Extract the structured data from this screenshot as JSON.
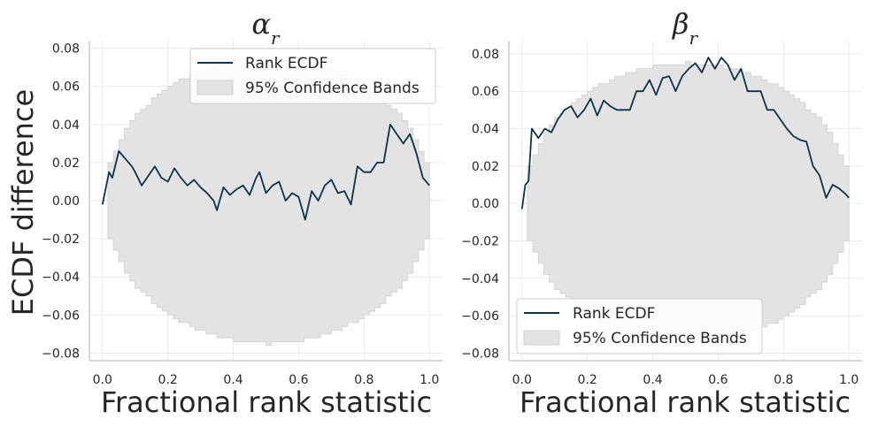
{
  "chart_data": [
    {
      "type": "line",
      "title": "α",
      "title_sub": "r",
      "xlabel": "Fractional rank statistic",
      "ylabel": "ECDF difference",
      "xlim": [
        -0.04,
        1.04
      ],
      "ylim": [
        -0.084,
        0.084
      ],
      "x_ticks": [
        0.0,
        0.2,
        0.4,
        0.6,
        0.8,
        1.0
      ],
      "x_tick_labels": [
        "0.0",
        "0.2",
        "0.4",
        "0.6",
        "0.8",
        "1.0"
      ],
      "y_ticks": [
        0.08,
        0.06,
        0.04,
        0.02,
        0.0,
        -0.02,
        -0.04,
        -0.06,
        -0.08
      ],
      "y_tick_labels": [
        "0.08",
        "0.06",
        "0.04",
        "0.02",
        "0.00",
        "−0.02",
        "−0.04",
        "−0.06",
        "−0.08"
      ],
      "grid": true,
      "legend": "top-right",
      "band_max": 0.075,
      "series": [
        {
          "name": "Rank ECDF",
          "color": "#0d3349",
          "x": [
            0.0,
            0.02,
            0.03,
            0.05,
            0.07,
            0.09,
            0.1,
            0.12,
            0.14,
            0.16,
            0.18,
            0.2,
            0.22,
            0.24,
            0.26,
            0.28,
            0.3,
            0.32,
            0.34,
            0.35,
            0.37,
            0.39,
            0.41,
            0.43,
            0.45,
            0.47,
            0.48,
            0.5,
            0.52,
            0.54,
            0.56,
            0.58,
            0.6,
            0.62,
            0.64,
            0.66,
            0.68,
            0.7,
            0.72,
            0.74,
            0.76,
            0.78,
            0.8,
            0.82,
            0.84,
            0.86,
            0.88,
            0.9,
            0.92,
            0.94,
            0.96,
            0.98,
            1.0
          ],
          "values": [
            -0.002,
            0.015,
            0.012,
            0.026,
            0.022,
            0.018,
            0.015,
            0.008,
            0.013,
            0.018,
            0.012,
            0.01,
            0.017,
            0.012,
            0.008,
            0.011,
            0.007,
            0.004,
            0.0,
            -0.005,
            0.007,
            0.003,
            0.006,
            0.008,
            0.003,
            0.012,
            0.015,
            0.004,
            0.008,
            0.01,
            0.0,
            0.004,
            0.002,
            -0.01,
            0.005,
            0.0,
            0.008,
            0.011,
            0.004,
            0.005,
            -0.002,
            0.018,
            0.015,
            0.015,
            0.02,
            0.02,
            0.04,
            0.035,
            0.03,
            0.035,
            0.025,
            0.012,
            0.008
          ]
        }
      ],
      "band_name": "95% Confidence Bands",
      "band_color": "#e3e3e3"
    },
    {
      "type": "line",
      "title": "β",
      "title_sub": "r",
      "xlabel": "Fractional rank statistic",
      "ylabel": "",
      "xlim": [
        -0.04,
        1.04
      ],
      "ylim": [
        -0.084,
        0.087
      ],
      "x_ticks": [
        0.0,
        0.2,
        0.4,
        0.6,
        0.8,
        1.0
      ],
      "x_tick_labels": [
        "0.0",
        "0.2",
        "0.4",
        "0.6",
        "0.8",
        "1.0"
      ],
      "y_ticks": [
        0.08,
        0.06,
        0.04,
        0.02,
        0.0,
        -0.02,
        -0.04,
        -0.06,
        -0.08
      ],
      "y_tick_labels": [
        "0.08",
        "0.06",
        "0.04",
        "0.02",
        "0.00",
        "−0.02",
        "−0.04",
        "−0.06",
        "−0.08"
      ],
      "grid": true,
      "legend": "bottom-left",
      "band_max": 0.075,
      "series": [
        {
          "name": "Rank ECDF",
          "color": "#0d3349",
          "x": [
            0.0,
            0.01,
            0.02,
            0.03,
            0.05,
            0.07,
            0.09,
            0.11,
            0.13,
            0.15,
            0.17,
            0.19,
            0.21,
            0.23,
            0.25,
            0.27,
            0.29,
            0.31,
            0.33,
            0.35,
            0.37,
            0.39,
            0.41,
            0.43,
            0.45,
            0.47,
            0.49,
            0.51,
            0.53,
            0.55,
            0.57,
            0.59,
            0.61,
            0.63,
            0.65,
            0.67,
            0.69,
            0.71,
            0.73,
            0.75,
            0.77,
            0.79,
            0.81,
            0.83,
            0.85,
            0.87,
            0.89,
            0.91,
            0.93,
            0.95,
            0.97,
            0.99,
            1.0
          ],
          "values": [
            -0.003,
            0.01,
            0.012,
            0.04,
            0.035,
            0.04,
            0.038,
            0.045,
            0.05,
            0.052,
            0.046,
            0.05,
            0.056,
            0.047,
            0.055,
            0.052,
            0.05,
            0.05,
            0.05,
            0.06,
            0.06,
            0.066,
            0.058,
            0.067,
            0.068,
            0.06,
            0.068,
            0.072,
            0.075,
            0.07,
            0.078,
            0.072,
            0.078,
            0.074,
            0.066,
            0.072,
            0.06,
            0.06,
            0.06,
            0.05,
            0.05,
            0.045,
            0.04,
            0.036,
            0.034,
            0.033,
            0.02,
            0.015,
            0.003,
            0.01,
            0.008,
            0.005,
            0.003
          ]
        }
      ],
      "band_name": "95% Confidence Bands",
      "band_color": "#e3e3e3"
    }
  ]
}
